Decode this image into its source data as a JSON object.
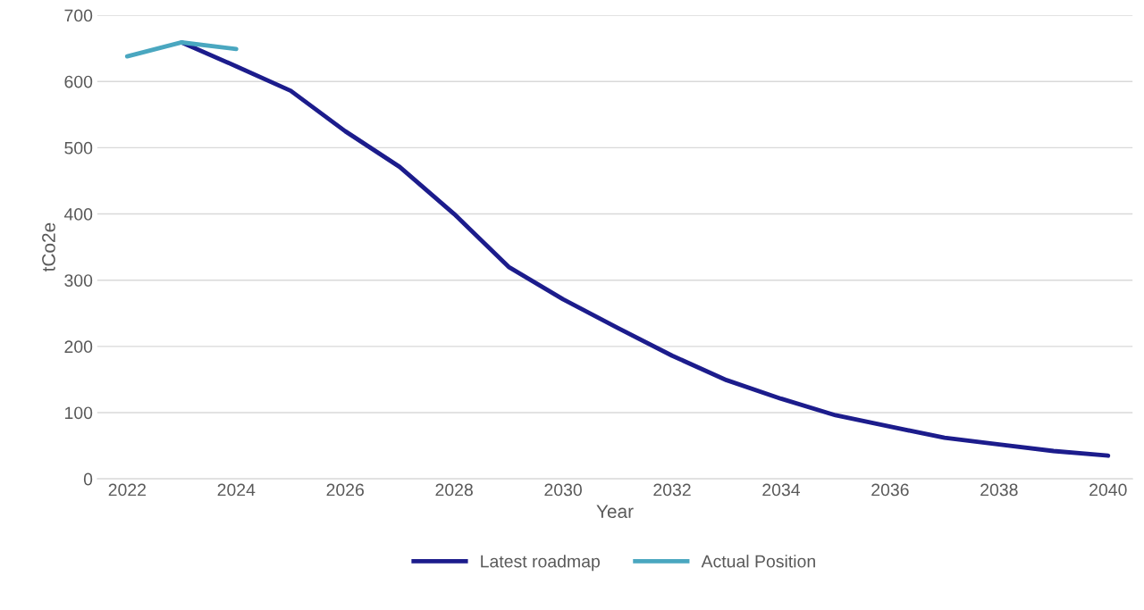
{
  "chart_data": {
    "type": "line",
    "xlabel": "Year",
    "ylabel": "tCo2e",
    "categories": [
      "2022",
      null,
      "2024",
      null,
      "2026",
      null,
      "2028",
      null,
      "2030",
      null,
      "2032",
      null,
      "2034",
      null,
      "2036",
      null,
      "2038",
      null,
      "2040"
    ],
    "series": [
      {
        "name": "Latest roadmap",
        "color": "#1c1c8c",
        "values": [
          null,
          659,
          623,
          586,
          525,
          471,
          400,
          320,
          271,
          228,
          186,
          149,
          121,
          96,
          79,
          62,
          52,
          42,
          35
        ]
      },
      {
        "name": "Actual Position",
        "color": "#4aa7c0",
        "values": [
          638,
          659,
          649,
          null,
          null,
          null,
          null,
          null,
          null,
          null,
          null,
          null,
          null,
          null,
          null,
          null,
          null,
          null,
          null
        ]
      }
    ],
    "ylim": [
      0,
      700
    ],
    "yticks": [
      0,
      100,
      200,
      300,
      400,
      500,
      600,
      700
    ],
    "grid": "y",
    "legend": "bottom",
    "marker": "none",
    "line_style": "solid"
  }
}
